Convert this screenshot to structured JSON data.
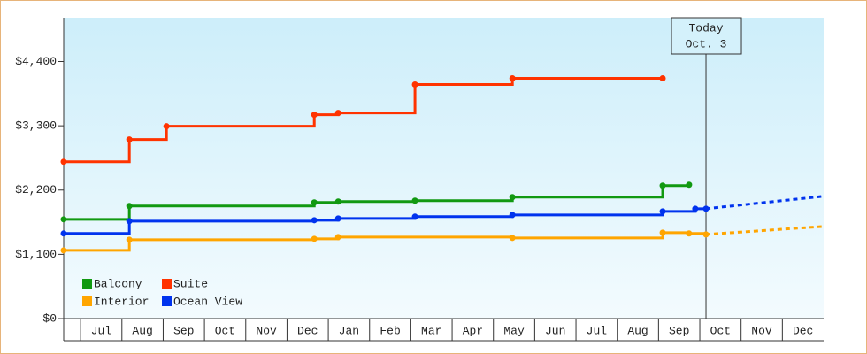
{
  "chart_data": {
    "type": "step-line",
    "ylim": [
      0,
      5150
    ],
    "yticks": [
      {
        "value": 0,
        "label": "$0"
      },
      {
        "value": 1100,
        "label": "$1,100"
      },
      {
        "value": 2200,
        "label": "$2,200"
      },
      {
        "value": 3300,
        "label": "$3,300"
      },
      {
        "value": 4400,
        "label": "$4,400"
      }
    ],
    "xlim": [
      0.59,
      19
    ],
    "xticks": [
      {
        "value": 1.5,
        "label": "Jul"
      },
      {
        "value": 2.5,
        "label": "Aug"
      },
      {
        "value": 3.5,
        "label": "Sep"
      },
      {
        "value": 4.5,
        "label": "Oct"
      },
      {
        "value": 5.5,
        "label": "Nov"
      },
      {
        "value": 6.5,
        "label": "Dec"
      },
      {
        "value": 7.5,
        "label": "Jan"
      },
      {
        "value": 8.5,
        "label": "Feb"
      },
      {
        "value": 9.5,
        "label": "Mar"
      },
      {
        "value": 10.5,
        "label": "Apr"
      },
      {
        "value": 11.5,
        "label": "May"
      },
      {
        "value": 12.5,
        "label": "Jun"
      },
      {
        "value": 13.5,
        "label": "Jul"
      },
      {
        "value": 14.5,
        "label": "Aug"
      },
      {
        "value": 15.5,
        "label": "Sep"
      },
      {
        "value": 16.5,
        "label": "Oct"
      },
      {
        "value": 17.5,
        "label": "Nov"
      },
      {
        "value": 18.5,
        "label": "Dec"
      }
    ],
    "today": {
      "x": 16.15,
      "label": [
        "Today",
        "Oct. 3"
      ]
    },
    "legend": "bottom-left",
    "series": [
      {
        "name": "Balcony",
        "color": "#119911",
        "x": [
          0.59,
          2.18,
          6.66,
          7.24,
          9.1,
          11.46,
          15.1,
          15.74
        ],
        "values": [
          1699,
          1927,
          1988,
          2003,
          2018,
          2079,
          2276,
          2291
        ]
      },
      {
        "name": "Suite",
        "color": "#ff3300",
        "x": [
          0.59,
          2.18,
          3.08,
          6.66,
          7.24,
          9.1,
          11.46,
          15.1
        ],
        "values": [
          2685,
          3065,
          3292,
          3490,
          3520,
          4006,
          4112,
          4112
        ]
      },
      {
        "name": "Interior",
        "color": "#ffa500",
        "x": [
          0.59,
          2.18,
          6.66,
          7.24,
          11.46,
          15.1,
          15.74,
          16.15
        ],
        "values": [
          1168,
          1350,
          1366,
          1396,
          1381,
          1472,
          1457,
          1441
        ],
        "forecast": {
          "x": [
            16.15,
            19
          ],
          "values": [
            1441,
            1578
          ]
        }
      },
      {
        "name": "Ocean View",
        "color": "#0033ee",
        "x": [
          0.59,
          2.18,
          6.66,
          7.24,
          9.1,
          11.46,
          15.1,
          15.89,
          16.15
        ],
        "values": [
          1457,
          1669,
          1684,
          1714,
          1745,
          1775,
          1835,
          1881,
          1881
        ],
        "forecast": {
          "x": [
            16.15,
            19
          ],
          "values": [
            1881,
            2094
          ]
        }
      }
    ]
  }
}
